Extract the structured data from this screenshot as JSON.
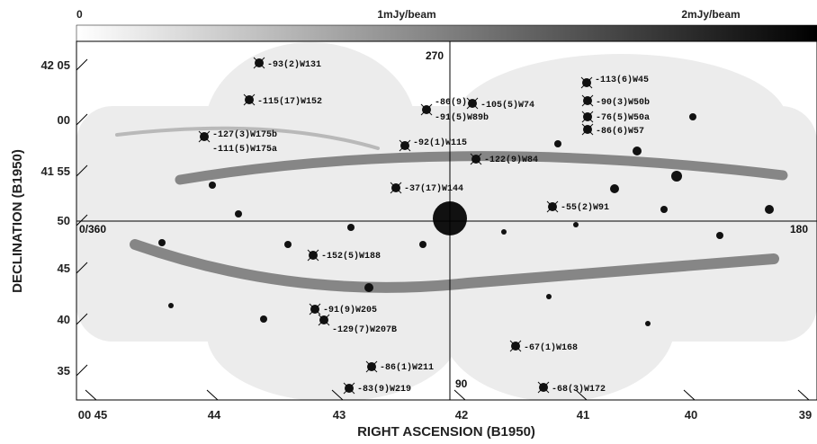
{
  "colorbar": {
    "labels": [
      "0",
      "1mJy/beam",
      "2mJy/beam"
    ]
  },
  "y_axis": {
    "title": "DECLINATION (B1950)",
    "ticks": [
      "42 05",
      "00",
      "41 55",
      "50",
      "45",
      "40",
      "35"
    ]
  },
  "x_axis": {
    "title": "RIGHT ASCENSION (B1950)",
    "ticks": [
      "00 45",
      "44",
      "43",
      "42",
      "41",
      "40",
      "39"
    ]
  },
  "crosshair_labels": [
    "270",
    "90",
    "0/360",
    "180"
  ],
  "sources": [
    "-93(2)W131",
    "-115(17)W152",
    "-127(3)W175b",
    "-111(5)W175a",
    "-92(1)W115",
    "-86(9)",
    "-91(5)W89b",
    "-105(5)W74",
    "-113(6)W45",
    "-90(3)W50b",
    "-76(5)W50a",
    "-86(6)W57",
    "-122(9)W84",
    "-37(17)W144",
    "-55(2)W91",
    "-152(5)W188",
    "-91(9)W205",
    "-129(7)W207B",
    "-67(1)W168",
    "-86(1)W211",
    "-83(9)W219",
    "-68(3)W172"
  ]
}
